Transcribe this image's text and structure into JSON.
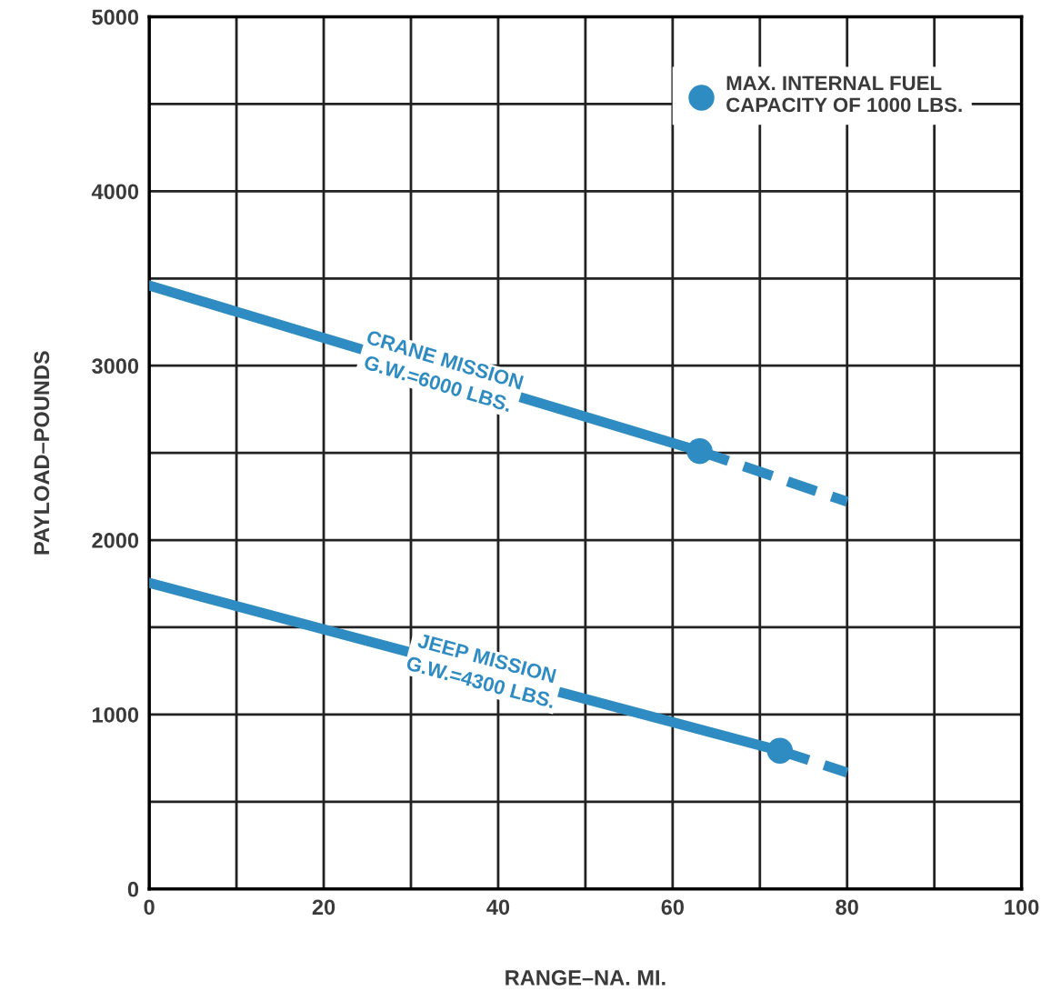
{
  "chart_data": {
    "type": "line",
    "xlabel": "RANGE–NA. MI.",
    "ylabel": "PAYLOAD–POUNDS",
    "xlim": [
      0,
      100
    ],
    "ylim": [
      0,
      5000
    ],
    "xticks": [
      0,
      {
        "value": 10,
        "label": null
      },
      20,
      {
        "value": 30,
        "label": null
      },
      40,
      {
        "value": 50,
        "label": null
      },
      60,
      {
        "value": 70,
        "label": null
      },
      80,
      {
        "value": 90,
        "label": null
      },
      100
    ],
    "yticks": [
      0,
      {
        "value": 500,
        "label": null
      },
      1000,
      {
        "value": 1500,
        "label": null
      },
      2000,
      {
        "value": 2500,
        "label": null
      },
      3000,
      {
        "value": 3500,
        "label": null
      },
      4000,
      {
        "value": 4500,
        "label": null
      },
      5000
    ],
    "grid": true,
    "legend": "top right",
    "series": [
      {
        "line_style": "solid",
        "name": "CRANE MISSION\nG.W.=6000 LBS.",
        "color": "#2f8cc2",
        "x": [
          0,
          63.1
        ],
        "values": [
          3460,
          2510
        ]
      },
      {
        "line_style": "dashed",
        "color": "#2f8cc2",
        "x": [
          63.1,
          80
        ],
        "values": [
          2510,
          2220
        ]
      },
      {
        "line_style": "solid",
        "name": "JEEP MISSION\nG.W.=4300 LBS.",
        "color": "#2f8cc2",
        "x": [
          0,
          72.3
        ],
        "values": [
          1755,
          792
        ]
      },
      {
        "line_style": "dashed",
        "color": "#2f8cc2",
        "x": [
          72.3,
          80
        ],
        "values": [
          792,
          667
        ]
      },
      {
        "type": "scatter",
        "marker": "circle",
        "name": "MAX. INTERNAL FUEL\nCAPACITY OF 1000 LBS.",
        "color": "#2f8cc2",
        "x": [
          63.1,
          72.3
        ],
        "values": [
          2510,
          792
        ]
      }
    ]
  }
}
